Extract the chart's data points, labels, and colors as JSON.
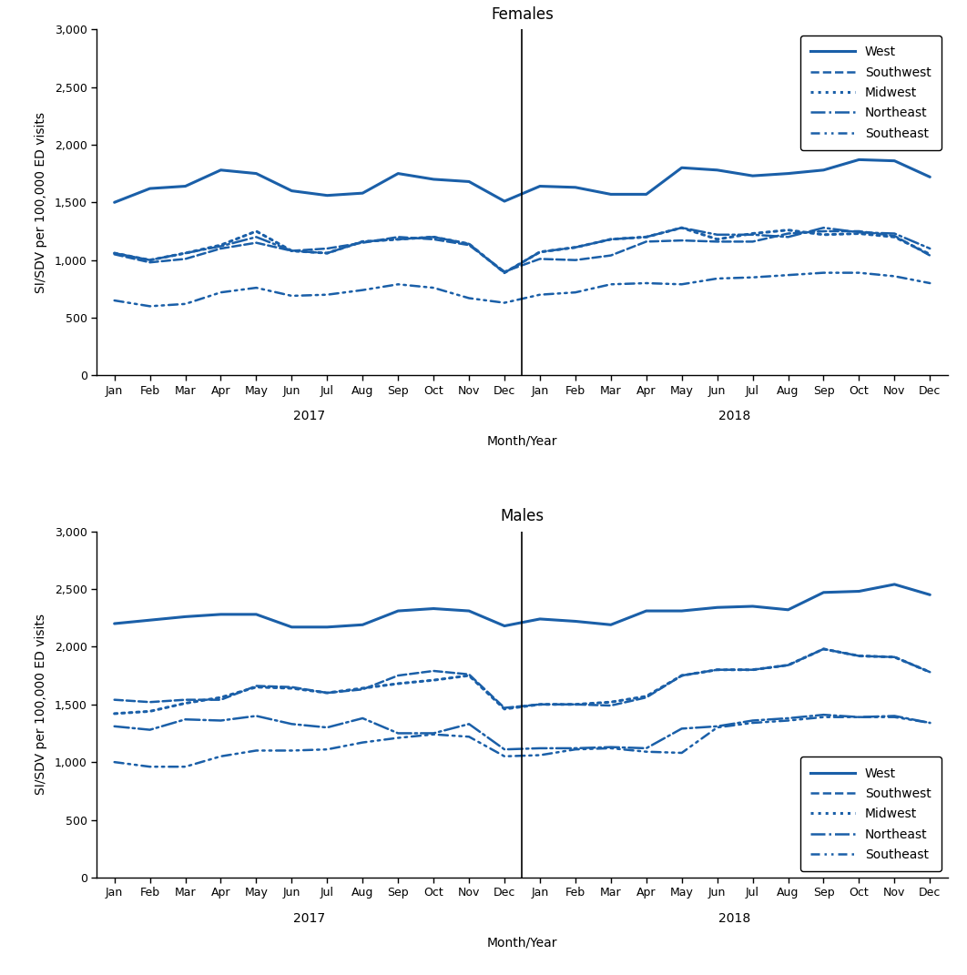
{
  "months": [
    "Jan",
    "Feb",
    "Mar",
    "Apr",
    "May",
    "Jun",
    "Jul",
    "Aug",
    "Sep",
    "Oct",
    "Nov",
    "Dec",
    "Jan",
    "Feb",
    "Mar",
    "Apr",
    "May",
    "Jun",
    "Jul",
    "Aug",
    "Sep",
    "Oct",
    "Nov",
    "Dec"
  ],
  "xlabel": "Month/Year",
  "ylabel": "SI/SDV per 100,000 ED visits",
  "color": "#1a5fa8",
  "females": {
    "title": "Females",
    "West": [
      1500,
      1620,
      1640,
      1780,
      1750,
      1600,
      1560,
      1580,
      1750,
      1700,
      1680,
      1510,
      1640,
      1630,
      1570,
      1570,
      1800,
      1780,
      1730,
      1750,
      1780,
      1870,
      1860,
      1720
    ],
    "Southwest": [
      1050,
      980,
      1010,
      1100,
      1150,
      1080,
      1100,
      1150,
      1200,
      1180,
      1130,
      900,
      1010,
      1000,
      1040,
      1160,
      1170,
      1160,
      1160,
      1230,
      1250,
      1250,
      1210,
      1040
    ],
    "Midwest": [
      1060,
      1000,
      1060,
      1130,
      1250,
      1080,
      1060,
      1160,
      1180,
      1200,
      1140,
      890,
      1070,
      1110,
      1180,
      1200,
      1280,
      1180,
      1230,
      1260,
      1220,
      1230,
      1200,
      1050
    ],
    "Northeast": [
      1060,
      1000,
      1060,
      1120,
      1200,
      1080,
      1060,
      1160,
      1180,
      1200,
      1140,
      890,
      1070,
      1110,
      1180,
      1200,
      1280,
      1220,
      1220,
      1200,
      1280,
      1240,
      1230,
      1100
    ],
    "Southeast": [
      650,
      600,
      620,
      720,
      760,
      690,
      700,
      740,
      790,
      760,
      670,
      630,
      700,
      720,
      790,
      800,
      790,
      840,
      850,
      870,
      890,
      890,
      860,
      800
    ]
  },
  "males": {
    "title": "Males",
    "West": [
      2200,
      2230,
      2260,
      2280,
      2280,
      2170,
      2170,
      2190,
      2310,
      2330,
      2310,
      2180,
      2240,
      2220,
      2190,
      2310,
      2310,
      2340,
      2350,
      2320,
      2470,
      2480,
      2540,
      2450
    ],
    "Southwest": [
      1540,
      1520,
      1540,
      1540,
      1660,
      1650,
      1600,
      1630,
      1750,
      1790,
      1760,
      1470,
      1500,
      1500,
      1490,
      1560,
      1750,
      1800,
      1800,
      1840,
      1980,
      1920,
      1910,
      1780
    ],
    "Midwest": [
      1420,
      1440,
      1510,
      1560,
      1650,
      1640,
      1600,
      1640,
      1680,
      1710,
      1750,
      1460,
      1500,
      1500,
      1520,
      1570,
      1750,
      1800,
      1800,
      1840,
      1980,
      1920,
      1910,
      1780
    ],
    "Northeast": [
      1310,
      1280,
      1370,
      1360,
      1400,
      1330,
      1300,
      1380,
      1250,
      1250,
      1330,
      1110,
      1120,
      1120,
      1130,
      1120,
      1290,
      1310,
      1360,
      1380,
      1410,
      1390,
      1400,
      1340
    ],
    "Southeast": [
      1000,
      960,
      960,
      1050,
      1100,
      1100,
      1110,
      1170,
      1210,
      1240,
      1220,
      1050,
      1060,
      1110,
      1120,
      1090,
      1080,
      1300,
      1340,
      1360,
      1390,
      1390,
      1390,
      1340
    ]
  },
  "regions": [
    "West",
    "Southwest",
    "Midwest",
    "Northeast",
    "Southeast"
  ],
  "yticks": [
    0,
    500,
    1000,
    1500,
    2000,
    2500,
    3000
  ]
}
